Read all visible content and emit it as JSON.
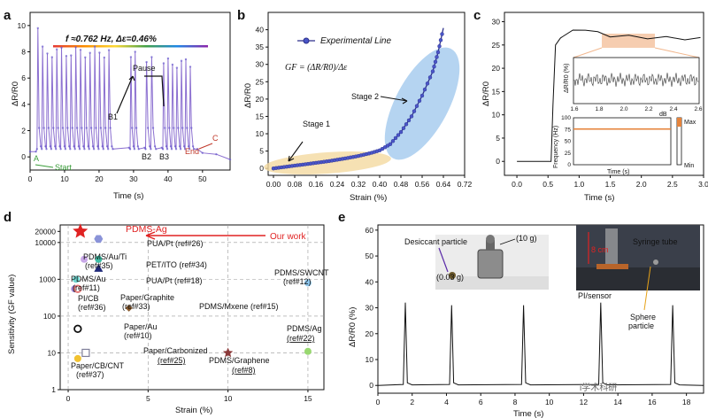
{
  "panels": {
    "a": "a",
    "b": "b",
    "c": "c",
    "d": "d",
    "e": "e"
  },
  "chart_data": [
    {
      "panel": "a",
      "type": "line",
      "title": "f ≈0.762 Hz, Δε=0.46%",
      "xlabel": "Time (s)",
      "ylabel": "ΔR/R0",
      "xlim": [
        0,
        58
      ],
      "ylim": [
        -1,
        11
      ],
      "xticks": [
        "0",
        "10",
        "20",
        "30",
        "40",
        "50"
      ],
      "yticks": [
        "0",
        "2",
        "4",
        "6",
        "8",
        "10"
      ],
      "annotations": [
        "A",
        "Start",
        "Pause",
        "B1",
        "B2",
        "B3",
        "End",
        "C"
      ],
      "segments": [
        {
          "t0": 2,
          "t1": 24,
          "n": 16,
          "peak": 8.4,
          "first_peak": 9.8
        },
        {
          "t0": 29,
          "t1": 31.5,
          "n": 2,
          "peak": 8.0
        },
        {
          "t0": 33.5,
          "t1": 36.5,
          "n": 2,
          "peak": 7.6
        },
        {
          "t0": 38.5,
          "t1": 47.5,
          "n": 7,
          "peak": 7.5
        }
      ],
      "baseline": 0.4,
      "colors": {
        "line": "#8b6fd0",
        "dots": "#6a5acd",
        "accent_green": "#3a9d3a",
        "accent_red": "#c0392b"
      }
    },
    {
      "panel": "b",
      "type": "line",
      "series": [
        {
          "name": "Experimental Line",
          "x": [
            0,
            0.04,
            0.08,
            0.12,
            0.16,
            0.2,
            0.24,
            0.28,
            0.32,
            0.36,
            0.4,
            0.44,
            0.48,
            0.52,
            0.56,
            0.6,
            0.62,
            0.64
          ],
          "y": [
            0,
            0.4,
            0.8,
            1.2,
            1.6,
            2.0,
            2.5,
            3.0,
            3.6,
            4.3,
            5.2,
            7.0,
            10.5,
            15.0,
            21.0,
            28.0,
            33.5,
            40.5
          ]
        }
      ],
      "formula": "GF = (ΔR/R0)/Δε",
      "annotations": [
        "Stage 1",
        "Stage 2"
      ],
      "xlabel": "Strain (%)",
      "ylabel": "ΔR/R0",
      "xlim": [
        -0.02,
        0.72
      ],
      "ylim": [
        -2,
        45
      ],
      "xticks": [
        "0.00",
        "0.08",
        "0.16",
        "0.24",
        "0.32",
        "0.40",
        "0.48",
        "0.56",
        "0.64",
        "0.72"
      ],
      "yticks": [
        "0",
        "5",
        "10",
        "15",
        "20",
        "25",
        "30",
        "35",
        "40"
      ],
      "colors": {
        "line": "#2c2f8a",
        "dots": "#4a56c8",
        "stage1": "#f4d9a0",
        "stage2": "#9cc6ec"
      }
    },
    {
      "panel": "c",
      "type": "line",
      "xlabel": "Time (s)",
      "ylabel": "ΔR/R0",
      "xlim": [
        -0.2,
        3.0
      ],
      "ylim": [
        -3,
        32
      ],
      "xticks": [
        "0.0",
        "0.5",
        "1.0",
        "1.5",
        "2.0",
        "2.5",
        "3.0"
      ],
      "yticks": [
        "0",
        "5",
        "10",
        "15",
        "20",
        "25",
        "30"
      ],
      "main": {
        "x": [
          0,
          0.55,
          0.58,
          0.62,
          0.7,
          0.9,
          1.1,
          1.3,
          1.5,
          1.8,
          2.1,
          2.4,
          2.7,
          2.95
        ],
        "y": [
          0,
          0,
          12,
          25,
          26.5,
          28,
          28.4,
          27.6,
          27.0,
          26.8,
          26.6,
          26.5,
          26.4,
          26.3
        ]
      },
      "inset_top": {
        "ylabel": "ΔR/R0 (%)",
        "xlabel": "dB",
        "xticks": [
          "1.6",
          "1.8",
          "2.0",
          "2.2",
          "2.4",
          "2.6"
        ]
      },
      "inset_bottom": {
        "ylabel": "Frequency (Hz)",
        "xlabel": "Time (s)",
        "yticks": [
          "0",
          "25",
          "50",
          "75",
          "100"
        ],
        "level": 76,
        "max_label": "Max",
        "min_label": "Min"
      },
      "colors": {
        "line": "#111111",
        "highlight": "#f2b88f",
        "level": "#e6843c"
      }
    },
    {
      "panel": "d",
      "type": "scatter",
      "xlabel": "Strain (%)",
      "ylabel": "Sensitivity (GF value)",
      "xscale": "linear",
      "yscale": "log",
      "xlim": [
        -0.5,
        16
      ],
      "ylim": [
        1,
        30000
      ],
      "xticks": [
        "0",
        "5",
        "10",
        "15"
      ],
      "yticks": [
        "1",
        "10",
        "100",
        "1000",
        "10000",
        "20000"
      ],
      "arrow_label": "Our work",
      "points": [
        {
          "name": "PDMS-Ag",
          "x": 0.76,
          "y": 20000,
          "marker": "star",
          "color": "#e02222"
        },
        {
          "name": "PUA/Pt (ref#26)",
          "x": 1.9,
          "y": 12500,
          "marker": "hexagon",
          "color": "#8a93d8"
        },
        {
          "name": "PDMS/Au/Ti (ref#35)",
          "x": 1.0,
          "y": 3500,
          "marker": "circle",
          "color": "#c9a8e8"
        },
        {
          "name": "PET/ITO (ref#34)",
          "x": 1.9,
          "y": 3500,
          "marker": "circle",
          "color": "#3cbfa6"
        },
        {
          "name": "PUA/Pt (ref#18)",
          "x": 1.9,
          "y": 2000,
          "marker": "triangle",
          "color": "#1f2a7a"
        },
        {
          "name": "PDMS/Au (ref#11)",
          "x": 0.5,
          "y": 1000,
          "marker": "circle",
          "color": "#6fd6d0"
        },
        {
          "name": "PI/CB (ref#36)",
          "x": 0.4,
          "y": 550,
          "marker": "circle",
          "color": "#a58ad8"
        },
        {
          "name": "Paper/Graphite (ref#33)",
          "x": 0.6,
          "y": 550,
          "marker": "ring",
          "color": "#e07070"
        },
        {
          "name": "PDMS/Mxene (ref#15)",
          "x": 3.8,
          "y": 165,
          "marker": "diamond",
          "color": "#8b5a2b"
        },
        {
          "name": "Paper/Au (ref#10)",
          "x": 0.6,
          "y": 45,
          "marker": "ring",
          "color": "#111111"
        },
        {
          "name": "Paper/Carbonized (ref#25)",
          "x": 1.1,
          "y": 10,
          "marker": "square",
          "color": "#7f7f9a"
        },
        {
          "name": "Paper/CB/CNT (ref#37)",
          "x": 0.6,
          "y": 7,
          "marker": "circle",
          "color": "#f2c230"
        },
        {
          "name": "PDMS/Graphene (ref#8)",
          "x": 10,
          "y": 10,
          "marker": "star",
          "color": "#8b3a3a"
        },
        {
          "name": "PDMS/SWCNT (ref#12)",
          "x": 15,
          "y": 800,
          "marker": "circle",
          "color": "#8fc8f0"
        },
        {
          "name": "PDMS/Ag (ref#22)",
          "x": 15,
          "y": 11,
          "marker": "circle",
          "color": "#98d870"
        }
      ],
      "labels": [
        "PDMS-Ag",
        "PUA/Pt (ref#26)",
        "PDMS/Au/Ti",
        "(ref#35)",
        "PET/ITO (ref#34)",
        "PUA/Pt (ref#18)",
        "PDMS/Au",
        "(ref#11)",
        "PI/CB",
        "(ref#36)",
        "Paper/Graphite",
        "(ref#33)",
        "PDMS/Mxene (ref#15)",
        "Paper/Au",
        "(ref#10)",
        "Paper/Carbonized",
        "(ref#25)",
        "Paper/CB/CNT",
        "(ref#37)",
        "PDMS/Graphene",
        "(ref#8)",
        "PDMS/SWCNT",
        "(ref#12)",
        "PDMS/Ag",
        "(ref#22)"
      ]
    },
    {
      "panel": "e",
      "type": "line",
      "xlabel": "Time (s)",
      "ylabel": "ΔR/R0 (%)",
      "xlim": [
        0,
        19
      ],
      "ylim": [
        -3,
        62
      ],
      "xticks": [
        "0",
        "2",
        "4",
        "6",
        "8",
        "10",
        "12",
        "14",
        "16",
        "18"
      ],
      "yticks": [
        "0",
        "10",
        "20",
        "30",
        "40",
        "50",
        "60"
      ],
      "peaks": [
        {
          "t": 1.6,
          "h": 32
        },
        {
          "t": 4.3,
          "h": 31
        },
        {
          "t": 8.5,
          "h": 31
        },
        {
          "t": 13.0,
          "h": 32
        },
        {
          "t": 17.2,
          "h": 31
        }
      ],
      "annotations": [
        "Desiccant particle",
        "(0.03 g)",
        "(10 g)",
        "Syringe tube",
        "8 cm",
        "PI/sensor",
        "Sphere",
        "particle"
      ],
      "watermark": "i学术科研"
    }
  ]
}
